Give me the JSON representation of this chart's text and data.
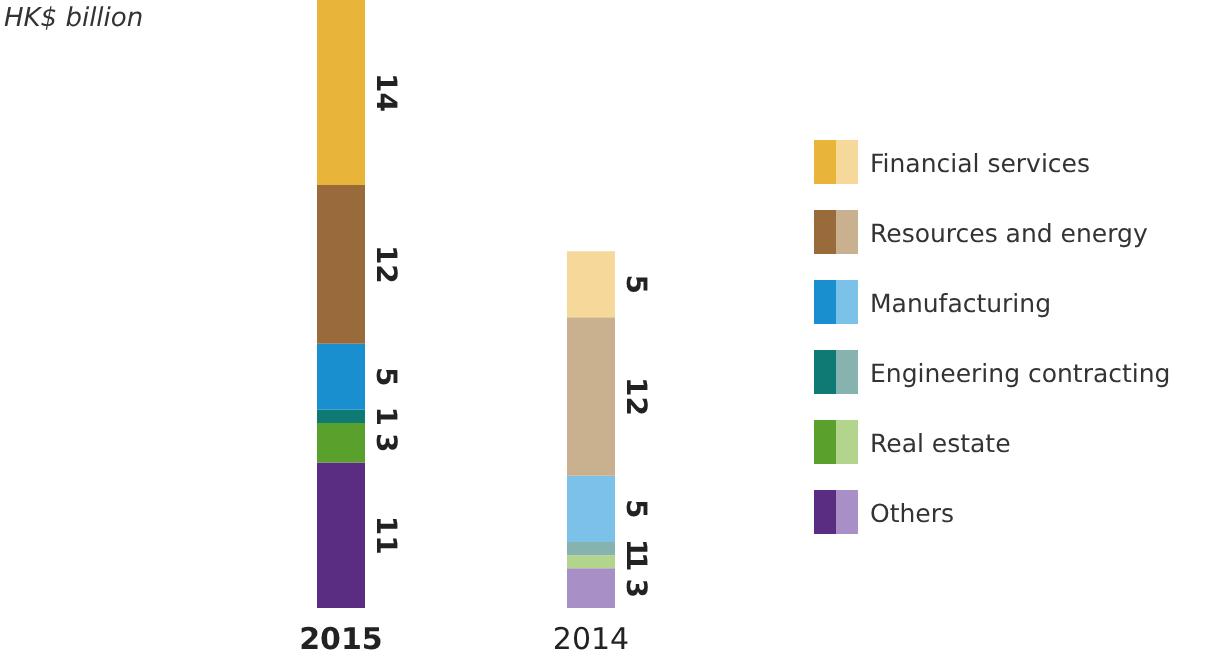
{
  "chart_data": {
    "type": "bar",
    "ylabel": "HK$ billion",
    "categories": [
      "2015",
      "2014"
    ],
    "stacked": true,
    "data_labels": true,
    "legend": "right",
    "grid": false,
    "series": [
      {
        "name": "Others",
        "colors": [
          "#5b2d82",
          "#a88fc5"
        ],
        "values": [
          11,
          3
        ]
      },
      {
        "name": "Real estate",
        "colors": [
          "#5aa02c",
          "#b2d48d"
        ],
        "values": [
          3,
          1
        ]
      },
      {
        "name": "Engineering contracting",
        "colors": [
          "#0f7a73",
          "#86b3b0"
        ],
        "values": [
          1,
          1
        ]
      },
      {
        "name": "Manufacturing",
        "colors": [
          "#1a8fd0",
          "#7cc2e8"
        ],
        "values": [
          5,
          5
        ]
      },
      {
        "name": "Resources and energy",
        "colors": [
          "#9a6b3a",
          "#c9b08e"
        ],
        "values": [
          12,
          12
        ]
      },
      {
        "name": "Financial services",
        "colors": [
          "#e8b53a",
          "#f5d89a"
        ],
        "values": [
          14,
          5
        ]
      }
    ]
  }
}
